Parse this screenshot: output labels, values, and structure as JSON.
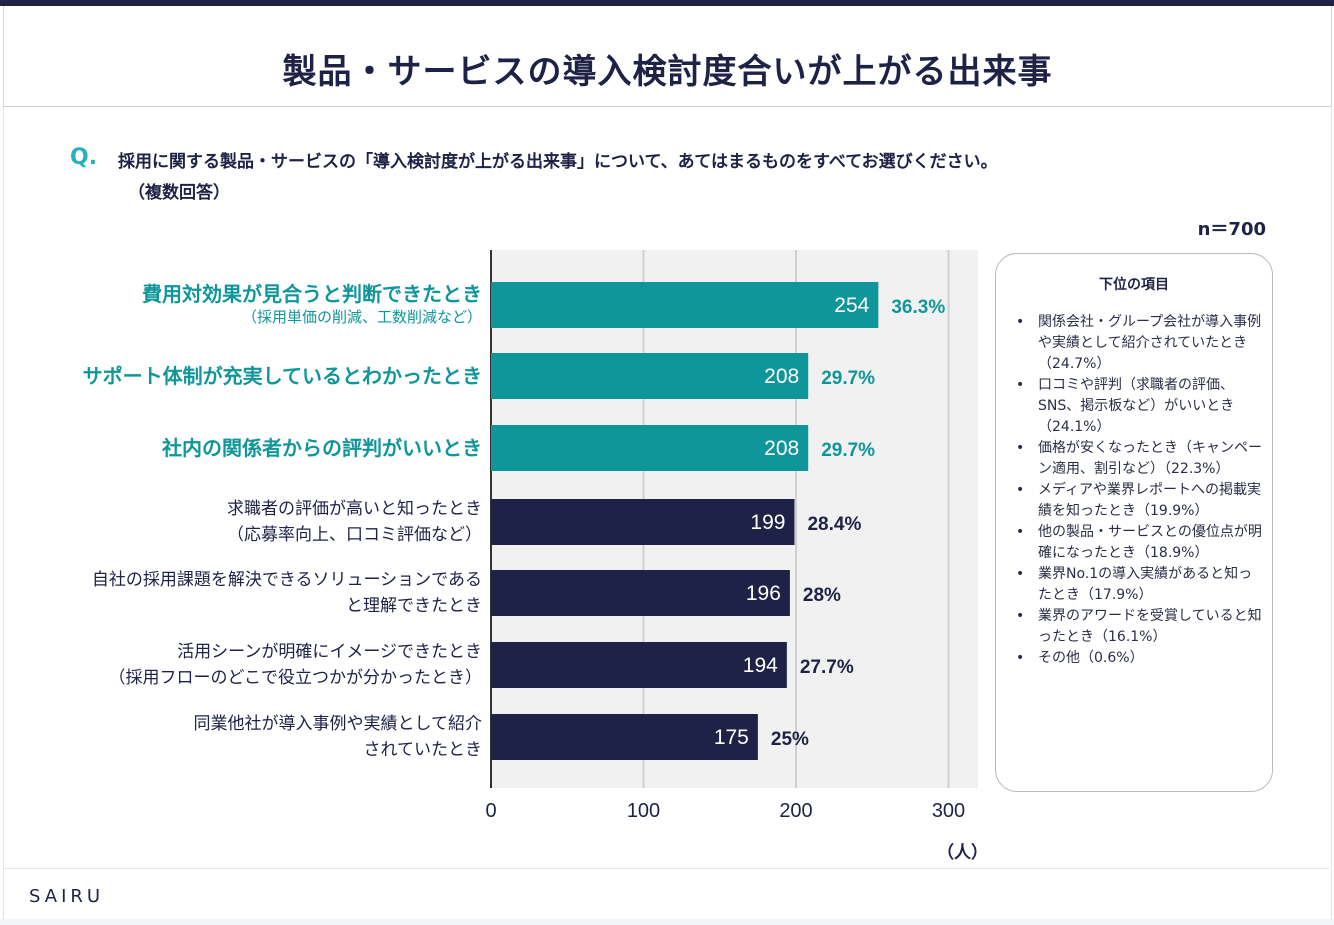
{
  "title": "製品・サービスの導入検討度合いが上がる出来事",
  "question": {
    "mark": "Q.",
    "text": "採用に関する製品・サービスの「導入検討度が上がる出来事」について、あてはまるものをすべてお選びください。",
    "note": "（複数回答）"
  },
  "n_label": "n＝700",
  "unit_label": "（人）",
  "colors": {
    "highlight": "#0f969a",
    "default": "#1e2246",
    "grid": "#cfcfcf"
  },
  "chart_data": {
    "type": "bar",
    "orientation": "horizontal",
    "title": "製品・サービスの導入検討度合いが上がる出来事",
    "xlabel": "（人）",
    "xlim": [
      0,
      320
    ],
    "xticks": [
      0,
      100,
      200,
      300
    ],
    "categories": [
      {
        "main": "費用対効果が見合うと判断できたとき",
        "sub": "（採用単価の削減、工数削減など）",
        "highlight": true
      },
      {
        "main": "サポート体制が充実しているとわかったとき",
        "sub": "",
        "highlight": true
      },
      {
        "main": "社内の関係者からの評判がいいとき",
        "sub": "",
        "highlight": true
      },
      {
        "main": "求職者の評価が高いと知ったとき",
        "sub": "（応募率向上、口コミ評価など）",
        "highlight": false
      },
      {
        "main": "自社の採用課題を解決できるソリューションである",
        "sub": "と理解できたとき",
        "highlight": false
      },
      {
        "main": "活用シーンが明確にイメージできたとき",
        "sub": "（採用フローのどこで役立つかが分かったとき）",
        "highlight": false
      },
      {
        "main": "同業他社が導入事例や実績として紹介",
        "sub": "されていたとき",
        "highlight": false
      }
    ],
    "values": [
      254,
      208,
      208,
      199,
      196,
      194,
      175
    ],
    "percents": [
      "36.3%",
      "29.7%",
      "29.7%",
      "28.4%",
      "28%",
      "27.7%",
      "25%"
    ]
  },
  "side_panel": {
    "title": "下位の項目",
    "items": [
      "関係会社・グループ会社が導入事例や実績として紹介されていたとき（24.7%）",
      "口コミや評判（求職者の評価、SNS、掲示板など）がいいとき（24.1%）",
      "価格が安くなったとき（キャンペーン適用、割引など）（22.3%）",
      "メディアや業界レポートへの掲載実績を知ったとき（19.9%）",
      "他の製品・サービスとの優位点が明確になったとき（18.9%）",
      "業界No.1の導入実績があると知ったとき（17.9%）",
      "業界のアワードを受賞していると知ったとき（16.1%）",
      "その他（0.6%）"
    ]
  },
  "footer": {
    "logo": "SAIRU"
  }
}
